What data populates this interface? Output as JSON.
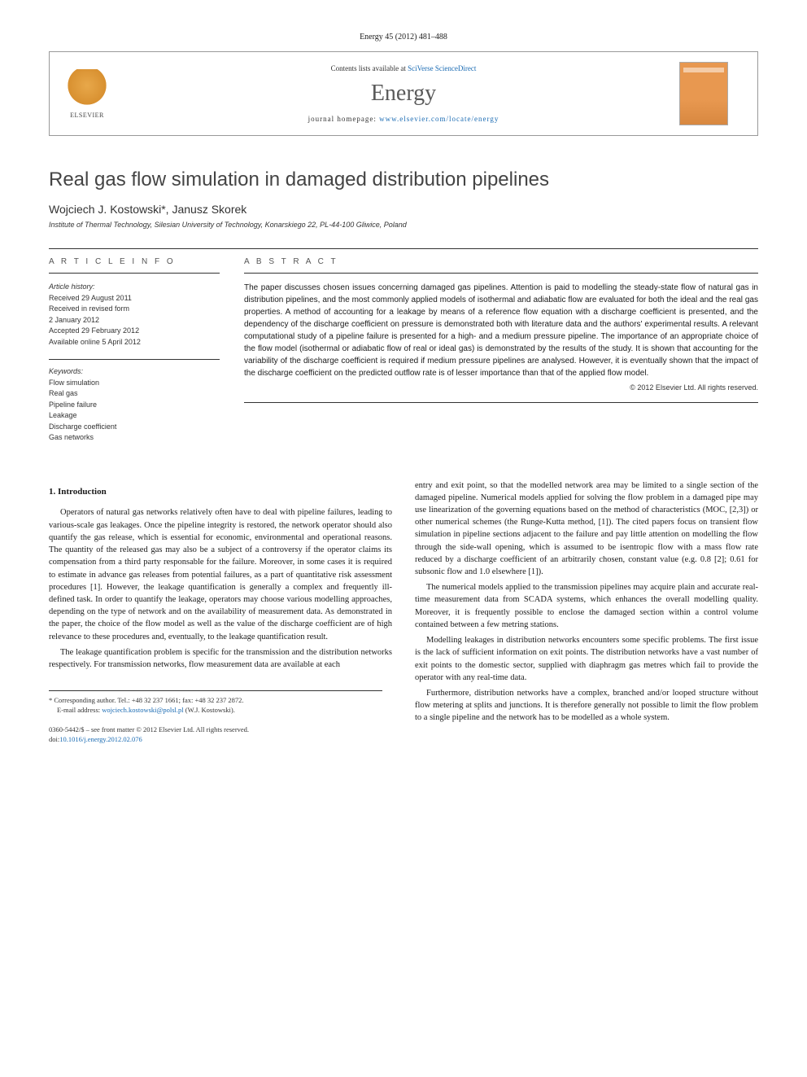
{
  "citation": "Energy 45 (2012) 481–488",
  "header": {
    "contents_prefix": "Contents lists available at ",
    "contents_link": "SciVerse ScienceDirect",
    "journal": "Energy",
    "homepage_prefix": "journal homepage: ",
    "homepage_url": "www.elsevier.com/locate/energy",
    "publisher_logo_text": "ELSEVIER"
  },
  "article": {
    "title": "Real gas flow simulation in damaged distribution pipelines",
    "authors": "Wojciech J. Kostowski*, Janusz Skorek",
    "affiliation": "Institute of Thermal Technology, Silesian University of Technology, Konarskiego 22, PL-44-100 Gliwice, Poland"
  },
  "info": {
    "section_label": "A R T I C L E  I N F O",
    "history_label": "Article history:",
    "history": [
      "Received 29 August 2011",
      "Received in revised form",
      "2 January 2012",
      "Accepted 29 February 2012",
      "Available online 5 April 2012"
    ],
    "keywords_label": "Keywords:",
    "keywords": [
      "Flow simulation",
      "Real gas",
      "Pipeline failure",
      "Leakage",
      "Discharge coefficient",
      "Gas networks"
    ]
  },
  "abstract": {
    "section_label": "A B S T R A C T",
    "text": "The paper discusses chosen issues concerning damaged gas pipelines. Attention is paid to modelling the steady-state flow of natural gas in distribution pipelines, and the most commonly applied models of isothermal and adiabatic flow are evaluated for both the ideal and the real gas properties. A method of accounting for a leakage by means of a reference flow equation with a discharge coefficient is presented, and the dependency of the discharge coefficient on pressure is demonstrated both with literature data and the authors' experimental results. A relevant computational study of a pipeline failure is presented for a high- and a medium pressure pipeline. The importance of an appropriate choice of the flow model (isothermal or adiabatic flow of real or ideal gas) is demonstrated by the results of the study. It is shown that accounting for the variability of the discharge coefficient is required if medium pressure pipelines are analysed. However, it is eventually shown that the impact of the discharge coefficient on the predicted outflow rate is of lesser importance than that of the applied flow model.",
    "copyright": "© 2012 Elsevier Ltd. All rights reserved."
  },
  "body": {
    "intro_heading": "1. Introduction",
    "col1_p1": "Operators of natural gas networks relatively often have to deal with pipeline failures, leading to various-scale gas leakages. Once the pipeline integrity is restored, the network operator should also quantify the gas release, which is essential for economic, environmental and operational reasons. The quantity of the released gas may also be a subject of a controversy if the operator claims its compensation from a third party responsable for the failure. Moreover, in some cases it is required to estimate in advance gas releases from potential failures, as a part of quantitative risk assessment procedures [1]. However, the leakage quantification is generally a complex and frequently ill-defined task. In order to quantify the leakage, operators may choose various modelling approaches, depending on the type of network and on the availability of measurement data. As demonstrated in the paper, the choice of the flow model as well as the value of the discharge coefficient are of high relevance to these procedures and, eventually, to the leakage quantification result.",
    "col1_p2": "The leakage quantification problem is specific for the transmission and the distribution networks respectively. For transmission networks, flow measurement data are available at each",
    "col2_p1": "entry and exit point, so that the modelled network area may be limited to a single section of the damaged pipeline. Numerical models applied for solving the flow problem in a damaged pipe may use linearization of the governing equations based on the method of characteristics (MOC, [2,3]) or other numerical schemes (the Runge-Kutta method, [1]). The cited papers focus on transient flow simulation in pipeline sections adjacent to the failure and pay little attention on modelling the flow through the side-wall opening, which is assumed to be isentropic flow with a mass flow rate reduced by a discharge coefficient of an arbitrarily chosen, constant value (e.g. 0.8 [2]; 0.61 for subsonic flow and 1.0 elsewhere [1]).",
    "col2_p2": "The numerical models applied to the transmission pipelines may acquire plain and accurate real-time measurement data from SCADA systems, which enhances the overall modelling quality. Moreover, it is frequently possible to enclose the damaged section within a control volume contained between a few metring stations.",
    "col2_p3": "Modelling leakages in distribution networks encounters some specific problems. The first issue is the lack of sufficient information on exit points. The distribution networks have a vast number of exit points to the domestic sector, supplied with diaphragm gas metres which fail to provide the operator with any real-time data.",
    "col2_p4": "Furthermore, distribution networks have a complex, branched and/or looped structure without flow metering at splits and junctions. It is therefore generally not possible to limit the flow problem to a single pipeline and the network has to be modelled as a whole system."
  },
  "footer": {
    "corresponding": "* Corresponding author. Tel.: +48 32 237 1661; fax: +48 32 237 2872.",
    "email_label": "E-mail address: ",
    "email": "wojciech.kostowski@polsl.pl",
    "email_suffix": " (W.J. Kostowski).",
    "issn": "0360-5442/$ – see front matter © 2012 Elsevier Ltd. All rights reserved.",
    "doi_prefix": "doi:",
    "doi": "10.1016/j.energy.2012.02.076"
  },
  "colors": {
    "link": "#1a6bb3",
    "text": "#1a1a1a",
    "heading_gray": "#5a5a5a",
    "rule": "#333333",
    "elsevier_orange": "#e89850"
  },
  "fonts": {
    "body_size_pt": 10.5,
    "abstract_size_pt": 10,
    "title_size_pt": 24,
    "journal_size_pt": 28
  }
}
